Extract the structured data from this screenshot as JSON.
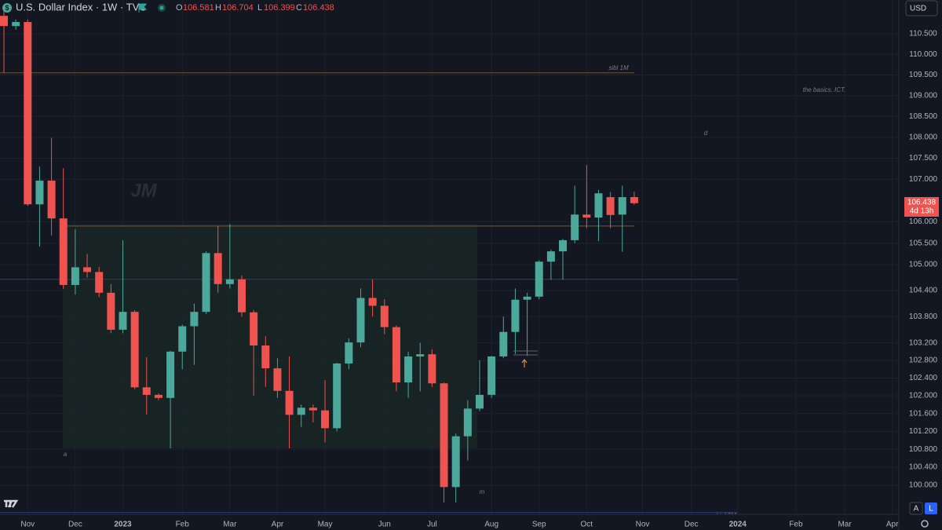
{
  "chart_data": {
    "type": "candlestick",
    "title": "U.S. Dollar Index · 1W · TVC",
    "ohlc_labels": [
      "O",
      "H",
      "L",
      "C"
    ],
    "countdown": "4d 13h",
    "currency": "USD",
    "scale_buttons": [
      "A",
      "L"
    ],
    "log_scale": true,
    "grid": true,
    "up_color": "#4ca89b",
    "down_color": "#ef5350",
    "x": [
      0,
      1,
      2,
      3,
      4,
      5,
      6,
      7,
      8,
      9,
      10,
      11,
      12,
      13,
      14,
      15,
      16,
      17,
      18,
      19,
      20,
      21,
      22,
      23,
      24,
      25,
      26,
      27,
      28,
      29,
      30,
      31,
      32,
      33,
      34,
      35,
      36,
      37,
      38,
      39,
      40,
      41,
      42,
      43,
      44,
      45,
      46,
      47,
      48,
      49,
      50,
      51,
      52,
      53
    ],
    "open": [
      110.94,
      110.69,
      110.79,
      106.41,
      106.97,
      106.08,
      104.53,
      104.94,
      104.83,
      104.35,
      103.5,
      103.91,
      102.19,
      102.02,
      101.95,
      103.0,
      103.58,
      103.91,
      105.27,
      104.55,
      104.66,
      103.9,
      103.14,
      102.62,
      102.11,
      101.57,
      101.73,
      101.67,
      101.27,
      102.73,
      103.21,
      104.23,
      104.05,
      103.56,
      102.3,
      102.89,
      102.94,
      102.28,
      99.96,
      101.09,
      101.71,
      102.02,
      102.89,
      103.45,
      104.19,
      104.26,
      105.07,
      105.31,
      105.57,
      106.17,
      106.1,
      106.58,
      106.17,
      106.581
    ],
    "high": [
      111.1,
      110.85,
      110.85,
      107.3,
      107.99,
      107.26,
      105.83,
      105.25,
      104.95,
      104.55,
      105.57,
      103.95,
      102.87,
      102.05,
      103.02,
      103.62,
      104.1,
      105.31,
      105.9,
      105.95,
      104.75,
      103.95,
      103.35,
      102.85,
      102.89,
      101.8,
      101.8,
      102.35,
      102.75,
      103.3,
      104.45,
      104.65,
      104.2,
      103.6,
      103.0,
      103.2,
      103.05,
      102.3,
      101.15,
      101.9,
      102.8,
      102.9,
      103.8,
      104.45,
      104.35,
      105.1,
      105.35,
      105.6,
      106.85,
      107.34,
      106.75,
      106.7,
      106.85,
      106.704
    ],
    "low": [
      109.55,
      110.6,
      106.37,
      105.42,
      105.68,
      104.44,
      104.31,
      104.7,
      104.25,
      103.42,
      103.42,
      102.15,
      101.57,
      101.9,
      100.82,
      102.6,
      102.7,
      103.86,
      104.35,
      104.45,
      103.8,
      102.0,
      102.2,
      101.95,
      100.82,
      101.3,
      101.4,
      100.95,
      101.2,
      102.6,
      103.1,
      103.8,
      103.4,
      102.1,
      101.95,
      102.1,
      102.2,
      99.62,
      99.62,
      100.55,
      101.65,
      101.95,
      102.85,
      102.95,
      102.9,
      104.2,
      104.65,
      104.65,
      105.5,
      105.85,
      105.55,
      105.85,
      105.3,
      106.399
    ],
    "close": [
      110.69,
      110.79,
      106.41,
      106.97,
      106.08,
      104.53,
      104.94,
      104.83,
      104.35,
      103.5,
      103.91,
      102.19,
      102.02,
      101.95,
      103.0,
      103.58,
      103.91,
      105.27,
      104.55,
      104.66,
      103.9,
      103.14,
      102.62,
      102.11,
      101.57,
      101.73,
      101.67,
      101.27,
      102.73,
      103.21,
      104.23,
      104.05,
      103.56,
      102.3,
      102.89,
      102.94,
      102.28,
      99.96,
      101.09,
      101.71,
      102.02,
      102.89,
      103.45,
      104.19,
      104.26,
      105.07,
      105.31,
      105.57,
      106.17,
      106.1,
      106.67,
      106.16,
      106.58,
      106.438
    ],
    "xlim": [
      -0.33,
      75.25
    ],
    "xticks": [
      {
        "value": 2,
        "label": "Nov"
      },
      {
        "value": 6,
        "label": "Dec"
      },
      {
        "value": 10,
        "label": "2023"
      },
      {
        "value": 15,
        "label": "Feb"
      },
      {
        "value": 19,
        "label": "Mar"
      },
      {
        "value": 23,
        "label": "Apr"
      },
      {
        "value": 27,
        "label": "May"
      },
      {
        "value": 32,
        "label": "Jun"
      },
      {
        "value": 36,
        "label": "Jul"
      },
      {
        "value": 41,
        "label": "Aug"
      },
      {
        "value": 45,
        "label": "Sep"
      },
      {
        "value": 49,
        "label": "Oct"
      },
      {
        "value": 53.7,
        "label": "Nov"
      },
      {
        "value": 57.8,
        "label": "Dec"
      },
      {
        "value": 61.7,
        "label": "2024"
      },
      {
        "value": 66.6,
        "label": "Feb"
      },
      {
        "value": 70.7,
        "label": "Mar"
      },
      {
        "value": 74.7,
        "label": "Apr"
      }
    ],
    "ylim": [
      99.36,
      111.33
    ],
    "yticks": [
      {
        "value": 110.5,
        "label": "110.500"
      },
      {
        "value": 110,
        "label": "110.000"
      },
      {
        "value": 109.5,
        "label": "109.500"
      },
      {
        "value": 109,
        "label": "109.000"
      },
      {
        "value": 108.5,
        "label": "108.500"
      },
      {
        "value": 108,
        "label": "108.000"
      },
      {
        "value": 107.5,
        "label": "107.500"
      },
      {
        "value": 107,
        "label": "107.000"
      },
      {
        "value": 106,
        "label": "106.000"
      },
      {
        "value": 105.5,
        "label": "105.500"
      },
      {
        "value": 105,
        "label": "105.000"
      },
      {
        "value": 104.4,
        "label": "104.400"
      },
      {
        "value": 103.8,
        "label": "103.800"
      },
      {
        "value": 103.2,
        "label": "103.200"
      },
      {
        "value": 102.8,
        "label": "102.800"
      },
      {
        "value": 102.4,
        "label": "102.400"
      },
      {
        "value": 102,
        "label": "102.000"
      },
      {
        "value": 101.6,
        "label": "101.600"
      },
      {
        "value": 101.2,
        "label": "101.200"
      },
      {
        "value": 100.8,
        "label": "100.800"
      },
      {
        "value": 100.4,
        "label": "100.400"
      },
      {
        "value": 100,
        "label": "100.000"
      }
    ],
    "hlines": [
      {
        "value": 109.55,
        "x": [
          -0.33,
          53
        ],
        "color": "#6b5434"
      },
      {
        "value": 105.9,
        "x": [
          4.95,
          53
        ],
        "color": "#7a5a36"
      },
      {
        "value": 104.66,
        "x": [
          -0.33,
          61.7
        ],
        "color": "#2f3a78"
      },
      {
        "value": 99.4,
        "x": [
          -0.33,
          61.7
        ],
        "color": "#2f3a78"
      }
    ],
    "box": {
      "x": [
        4.95,
        39.8
      ],
      "y": [
        100.82,
        105.95
      ],
      "color": "#1c2b26"
    },
    "annotations": [
      "sibl 1M",
      "the basics. ICT.",
      "d",
      "JM",
      "a",
      "m",
      "bisl 2M"
    ]
  }
}
